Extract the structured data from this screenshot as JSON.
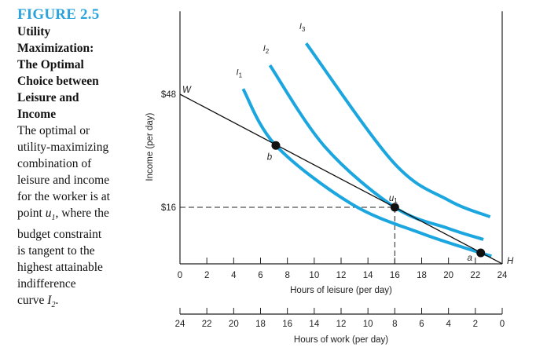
{
  "caption": {
    "figure_label": "FIGURE 2.5",
    "title_lines": [
      "Utility",
      "Maximization:",
      "The Optimal",
      "Choice between",
      "Leisure and",
      "Income"
    ],
    "body_lines": [
      "The optimal or",
      "utility-maximizing",
      "combination of",
      "leisure and income",
      "for the worker is at"
    ],
    "body_u_line": {
      "pre": "point ",
      "var": "u",
      "sub": "1",
      "post": ", where the"
    },
    "body_lines2": [
      "budget constraint",
      "is tangent to the",
      "highest attainable",
      "indifference"
    ],
    "body_last_line": {
      "pre": "curve ",
      "var": "I",
      "sub": "2",
      "post": "."
    }
  },
  "chart_data": {
    "type": "line",
    "ylabel": "Income (per day)",
    "xlabel": "Hours of leisure (per day)",
    "x2label": "Hours of work (per day)",
    "xlim": [
      0,
      24
    ],
    "ylim": [
      0,
      71.5
    ],
    "x_ticks": [
      "0",
      "2",
      "4",
      "6",
      "8",
      "10",
      "12",
      "14",
      "16",
      "18",
      "20",
      "22",
      "24"
    ],
    "x2_ticks": [
      "24",
      "22",
      "20",
      "18",
      "16",
      "14",
      "12",
      "10",
      "8",
      "6",
      "4",
      "2",
      "0"
    ],
    "y_ticks": [
      {
        "value": 48,
        "label": "$48"
      },
      {
        "value": 16,
        "label": "$16"
      }
    ],
    "grid": false,
    "budget_line": {
      "points": [
        [
          0,
          48
        ],
        [
          24,
          0
        ]
      ],
      "start_label": "W",
      "end_label": "H",
      "color": "#111111"
    },
    "indifference_curves": [
      {
        "name": "I",
        "sub": "1",
        "color": "#1ba6e0",
        "points": [
          [
            4.7,
            49.5
          ],
          [
            7.14,
            33.5
          ],
          [
            12.8,
            16.9
          ],
          [
            18,
            8.6
          ],
          [
            22.4,
            3.1
          ],
          [
            23.2,
            2.2
          ]
        ]
      },
      {
        "name": "I",
        "sub": "2",
        "color": "#1ba6e0",
        "points": [
          [
            6.7,
            56.2
          ],
          [
            10.8,
            33.1
          ],
          [
            16,
            16
          ],
          [
            20,
            10
          ],
          [
            22.6,
            6.9
          ]
        ]
      },
      {
        "name": "I",
        "sub": "3",
        "color": "#1ba6e0",
        "points": [
          [
            9.4,
            62.4
          ],
          [
            15.9,
            28.7
          ],
          [
            20,
            18
          ],
          [
            23.1,
            13.3
          ]
        ]
      }
    ],
    "points": [
      {
        "label": "b",
        "sub": "",
        "x": 7.14,
        "y": 33.5
      },
      {
        "label": "u",
        "sub": "1",
        "x": 16,
        "y": 16
      },
      {
        "label": "a",
        "sub": "",
        "x": 22.4,
        "y": 3.1
      }
    ],
    "guide_lines": {
      "x": 16,
      "y": 16,
      "style": "dashed"
    }
  }
}
